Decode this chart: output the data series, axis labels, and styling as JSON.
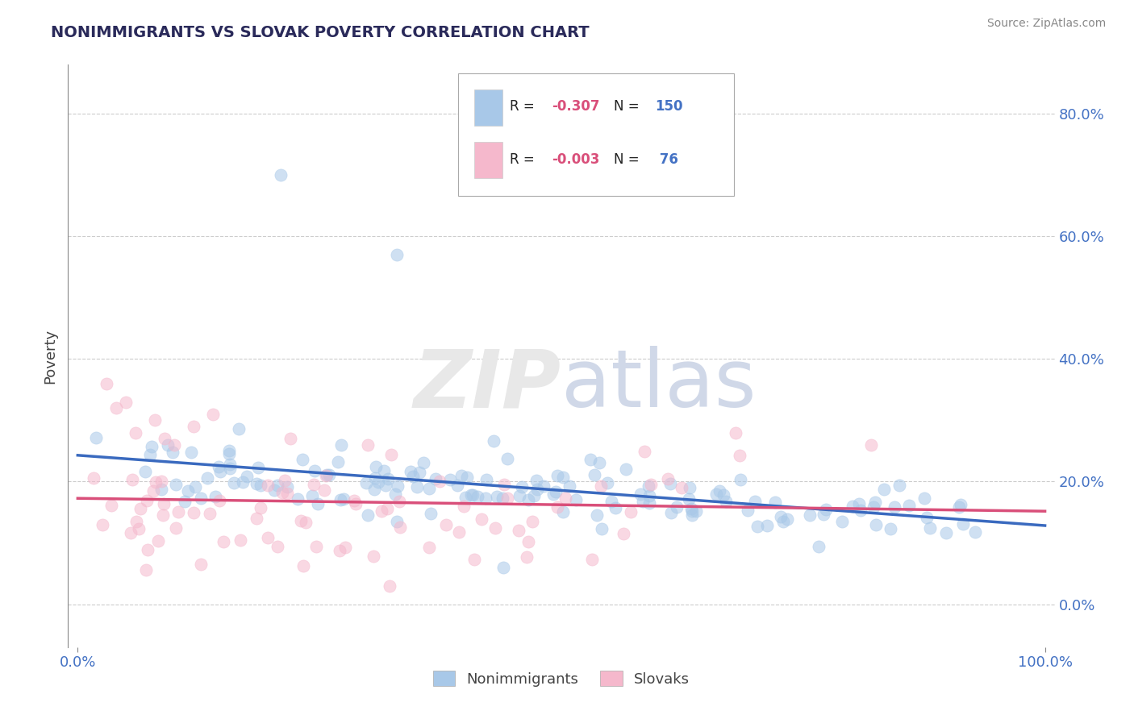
{
  "title": "NONIMMIGRANTS VS SLOVAK POVERTY CORRELATION CHART",
  "source": "Source: ZipAtlas.com",
  "ylabel": "Poverty",
  "blue_color": "#a8c8e8",
  "pink_color": "#f5b8cc",
  "blue_line_color": "#3a6abf",
  "pink_line_color": "#d94f7a",
  "title_color": "#2a2a5a",
  "axis_label_color": "#4472c4",
  "legend_R_color": "#d94f7a",
  "legend_N_color": "#4472c4",
  "R_nonimmigrants": -0.307,
  "N_nonimmigrants": 150,
  "R_slovaks": -0.003,
  "N_slovaks": 76,
  "watermark_text": "ZIPatlas",
  "legend_text_1": "R = -0.307   N = 150",
  "legend_text_2": "R = -0.003   N =  76"
}
